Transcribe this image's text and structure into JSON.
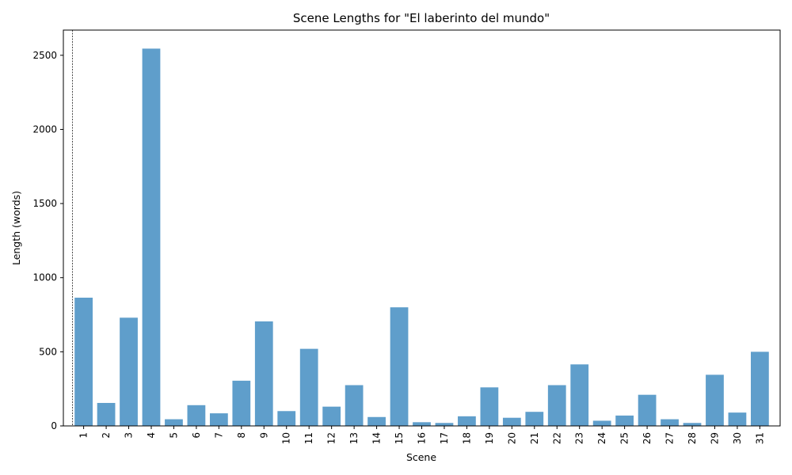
{
  "chart_data": {
    "type": "bar",
    "title": "Scene Lengths for \"El laberinto del mundo\"",
    "xlabel": "Scene",
    "ylabel": "Length (words)",
    "categories": [
      "1",
      "2",
      "3",
      "4",
      "5",
      "6",
      "7",
      "8",
      "9",
      "10",
      "11",
      "12",
      "13",
      "14",
      "15",
      "16",
      "17",
      "18",
      "19",
      "20",
      "21",
      "22",
      "23",
      "24",
      "25",
      "26",
      "27",
      "28",
      "29",
      "30",
      "31"
    ],
    "values": [
      865,
      155,
      730,
      2545,
      45,
      140,
      85,
      305,
      705,
      100,
      520,
      130,
      275,
      60,
      800,
      25,
      20,
      65,
      260,
      55,
      95,
      275,
      415,
      35,
      70,
      210,
      45,
      20,
      345,
      90,
      500
    ],
    "yticks": [
      0,
      500,
      1000,
      1500,
      2000,
      2500
    ],
    "ylim": [
      0,
      2670
    ],
    "bar_color": "#5f9ecb",
    "grid": false,
    "annotation": "dashed vertical line before scene 1"
  }
}
